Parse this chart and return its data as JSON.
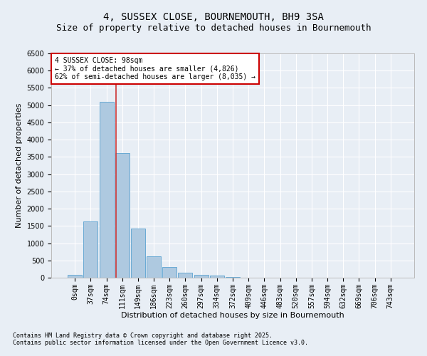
{
  "title": "4, SUSSEX CLOSE, BOURNEMOUTH, BH9 3SA",
  "subtitle": "Size of property relative to detached houses in Bournemouth",
  "xlabel": "Distribution of detached houses by size in Bournemouth",
  "ylabel": "Number of detached properties",
  "bar_color": "#aec9e0",
  "bar_edge_color": "#6aaad4",
  "background_color": "#e8eef5",
  "grid_color": "#ffffff",
  "categories": [
    "0sqm",
    "37sqm",
    "74sqm",
    "111sqm",
    "149sqm",
    "186sqm",
    "223sqm",
    "260sqm",
    "297sqm",
    "334sqm",
    "372sqm",
    "409sqm",
    "446sqm",
    "483sqm",
    "520sqm",
    "557sqm",
    "594sqm",
    "632sqm",
    "669sqm",
    "706sqm",
    "743sqm"
  ],
  "values": [
    75,
    1640,
    5100,
    3620,
    1420,
    620,
    310,
    140,
    90,
    55,
    30,
    10,
    5,
    3,
    2,
    1,
    1,
    0,
    0,
    0,
    0
  ],
  "property_line_x": 2.62,
  "annotation_text": "4 SUSSEX CLOSE: 98sqm\n← 37% of detached houses are smaller (4,826)\n62% of semi-detached houses are larger (8,035) →",
  "annotation_box_color": "#ffffff",
  "annotation_border_color": "#cc0000",
  "vline_color": "#cc3333",
  "ylim": [
    0,
    6500
  ],
  "yticks": [
    0,
    500,
    1000,
    1500,
    2000,
    2500,
    3000,
    3500,
    4000,
    4500,
    5000,
    5500,
    6000,
    6500
  ],
  "footnote1": "Contains HM Land Registry data © Crown copyright and database right 2025.",
  "footnote2": "Contains public sector information licensed under the Open Government Licence v3.0.",
  "title_fontsize": 10,
  "subtitle_fontsize": 9,
  "axis_label_fontsize": 8,
  "tick_fontsize": 7,
  "annot_fontsize": 7,
  "footnote_fontsize": 6
}
